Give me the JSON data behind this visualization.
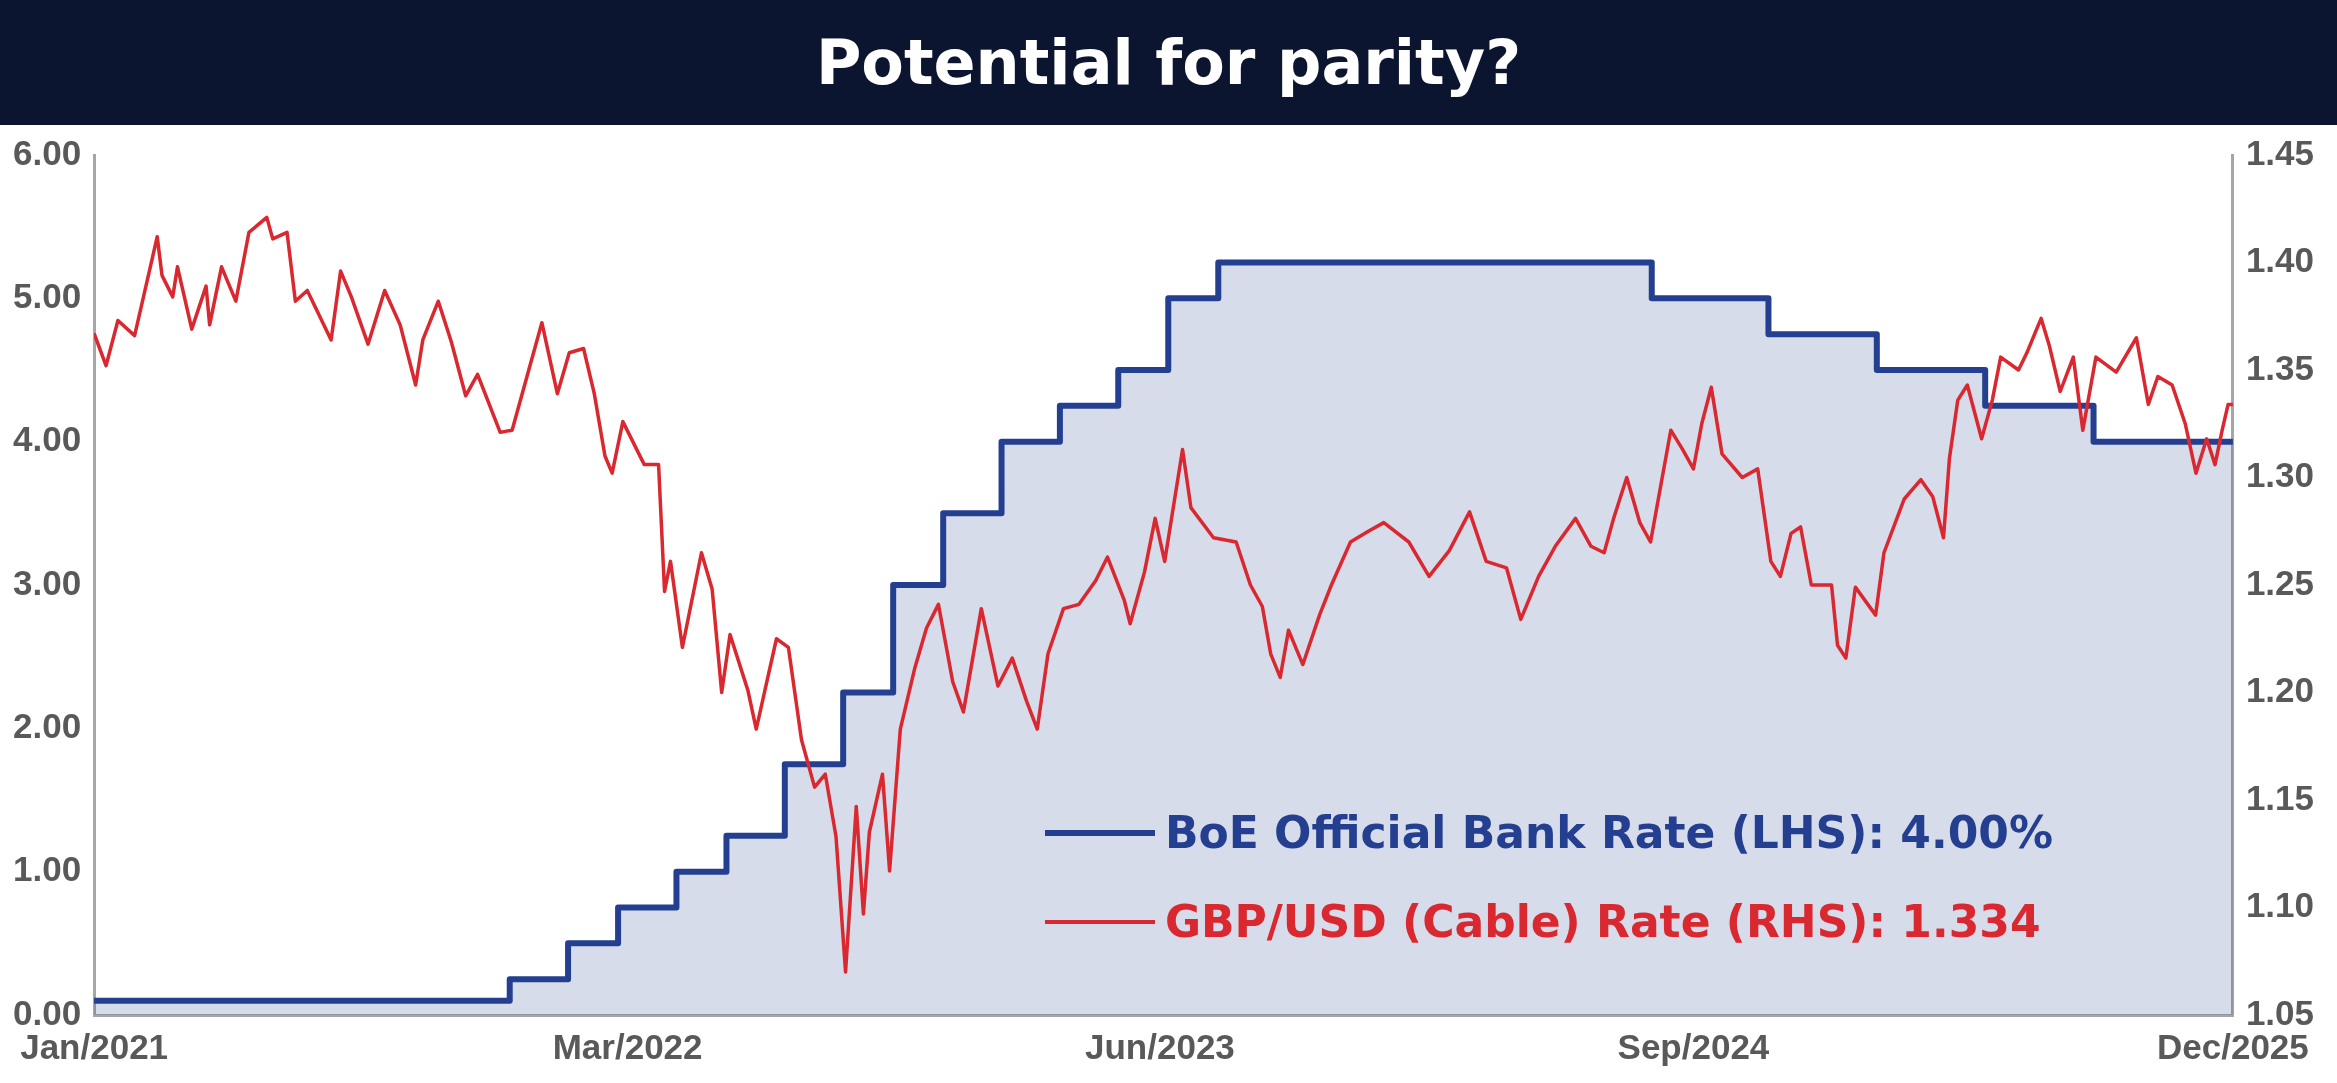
{
  "chart_data": {
    "type": "line",
    "title": "Potential for parity?",
    "xlim": [
      "2021-01-01",
      "2025-12-02"
    ],
    "xticks": [
      {
        "value": "2021-01-01",
        "label": "Jan/2021"
      },
      {
        "value": "2022-03-25",
        "label": "Mar/2022"
      },
      {
        "value": "2023-06-15",
        "label": "Jun/2023"
      },
      {
        "value": "2024-09-05",
        "label": "Sep/2024"
      },
      {
        "value": "2025-12-02",
        "label": "Dec/2025"
      }
    ],
    "ylim": [
      0,
      6
    ],
    "yticks": [
      {
        "value": 0,
        "label": "0.00"
      },
      {
        "value": 1,
        "label": "1.00"
      },
      {
        "value": 2,
        "label": "2.00"
      },
      {
        "value": 3,
        "label": "3.00"
      },
      {
        "value": 4,
        "label": "4.00"
      },
      {
        "value": 5,
        "label": "5.00"
      },
      {
        "value": 6,
        "label": "6.00"
      }
    ],
    "y2lim": [
      1.05,
      1.45
    ],
    "y2ticks": [
      {
        "value": 1.05,
        "label": "1.05"
      },
      {
        "value": 1.1,
        "label": "1.10"
      },
      {
        "value": 1.15,
        "label": "1.15"
      },
      {
        "value": 1.2,
        "label": "1.20"
      },
      {
        "value": 1.25,
        "label": "1.25"
      },
      {
        "value": 1.3,
        "label": "1.30"
      },
      {
        "value": 1.35,
        "label": "1.35"
      },
      {
        "value": 1.4,
        "label": "1.40"
      },
      {
        "value": 1.45,
        "label": "1.45"
      }
    ],
    "grid": false,
    "legend": "bottom right",
    "series": [
      {
        "name": "BoE Official Bank Rate (LHS): 4.00%",
        "type": "area",
        "color": "#243f8f",
        "x": [
          "2021-01-01",
          "2021-12-16",
          "2021-12-16",
          "2022-02-03",
          "2022-02-03",
          "2022-03-17",
          "2022-03-17",
          "2022-05-05",
          "2022-05-05",
          "2022-06-16",
          "2022-06-16",
          "2022-08-04",
          "2022-08-04",
          "2022-09-22",
          "2022-09-22",
          "2022-11-03",
          "2022-11-03",
          "2022-12-15",
          "2022-12-15",
          "2023-02-02",
          "2023-02-02",
          "2023-03-23",
          "2023-03-23",
          "2023-05-11",
          "2023-05-11",
          "2023-06-22",
          "2023-06-22",
          "2023-08-03",
          "2023-08-03",
          "2024-08-01",
          "2024-08-01",
          "2024-11-07",
          "2024-11-07",
          "2025-02-06",
          "2025-02-06",
          "2025-05-08",
          "2025-05-08",
          "2025-08-07",
          "2025-08-07",
          "2025-12-02"
        ],
        "values": [
          0.1,
          0.1,
          0.25,
          0.25,
          0.5,
          0.5,
          0.75,
          0.75,
          1.0,
          1.0,
          1.25,
          1.25,
          1.75,
          1.75,
          2.25,
          2.25,
          3.0,
          3.0,
          3.5,
          3.5,
          4.0,
          4.0,
          4.25,
          4.25,
          4.5,
          4.5,
          5.0,
          5.0,
          5.25,
          5.25,
          5.0,
          5.0,
          4.75,
          4.75,
          4.5,
          4.5,
          4.25,
          4.25,
          4.0,
          4.0
        ]
      },
      {
        "name": "GBP/USD (Cable) Rate (RHS): 1.334",
        "axis": "y2",
        "color": "#d9282f",
        "x": [
          "2021-01-01",
          "2021-01-11",
          "2021-01-21",
          "2021-02-04",
          "2021-02-23",
          "2021-02-27",
          "2021-03-08",
          "2021-03-12",
          "2021-03-24",
          "2021-04-05",
          "2021-04-08",
          "2021-04-18",
          "2021-04-30",
          "2021-05-11",
          "2021-05-26",
          "2021-05-31",
          "2021-06-12",
          "2021-06-19",
          "2021-06-29",
          "2021-07-19",
          "2021-07-27",
          "2021-08-05",
          "2021-08-19",
          "2021-09-02",
          "2021-09-15",
          "2021-09-28",
          "2021-10-04",
          "2021-10-17",
          "2021-10-28",
          "2021-11-09",
          "2021-11-19",
          "2021-12-08",
          "2021-12-18",
          "2022-01-01",
          "2022-01-12",
          "2022-01-25",
          "2022-02-04",
          "2022-02-16",
          "2022-02-25",
          "2022-03-06",
          "2022-03-12",
          "2022-03-21",
          "2022-04-08",
          "2022-04-20",
          "2022-04-25",
          "2022-04-30",
          "2022-05-10",
          "2022-05-26",
          "2022-06-04",
          "2022-06-12",
          "2022-06-19",
          "2022-07-04",
          "2022-07-11",
          "2022-07-28",
          "2022-08-07",
          "2022-08-18",
          "2022-08-29",
          "2022-09-07",
          "2022-09-16",
          "2022-09-24",
          "2022-10-03",
          "2022-10-09",
          "2022-10-14",
          "2022-10-25",
          "2022-10-31",
          "2022-11-09",
          "2022-11-21",
          "2022-12-01",
          "2022-12-11",
          "2022-12-23",
          "2023-01-01",
          "2023-01-16",
          "2023-01-30",
          "2023-02-11",
          "2023-02-23",
          "2023-03-04",
          "2023-03-13",
          "2023-03-26",
          "2023-04-08",
          "2023-04-22",
          "2023-05-02",
          "2023-05-16",
          "2023-05-21",
          "2023-06-02",
          "2023-06-11",
          "2023-06-19",
          "2023-07-04",
          "2023-07-11",
          "2023-07-30",
          "2023-08-18",
          "2023-08-30",
          "2023-09-09",
          "2023-09-16",
          "2023-09-24",
          "2023-10-01",
          "2023-10-13",
          "2023-10-27",
          "2023-11-06",
          "2023-11-22",
          "2023-12-07",
          "2023-12-20",
          "2024-01-10",
          "2024-01-27",
          "2024-02-13",
          "2024-03-01",
          "2024-03-15",
          "2024-04-01",
          "2024-04-13",
          "2024-04-28",
          "2024-05-12",
          "2024-05-29",
          "2024-06-11",
          "2024-06-22",
          "2024-06-30",
          "2024-07-11",
          "2024-07-22",
          "2024-07-31",
          "2024-08-17",
          "2024-08-27",
          "2024-09-05",
          "2024-09-12",
          "2024-09-20",
          "2024-09-29",
          "2024-10-16",
          "2024-10-29",
          "2024-11-09",
          "2024-11-17",
          "2024-11-26",
          "2024-12-04",
          "2024-12-13",
          "2024-12-30",
          "2025-01-04",
          "2025-01-11",
          "2025-01-19",
          "2025-02-05",
          "2025-02-12",
          "2025-03-01",
          "2025-03-15",
          "2025-03-25",
          "2025-04-03",
          "2025-04-08",
          "2025-04-15",
          "2025-04-23",
          "2025-05-05",
          "2025-05-14",
          "2025-05-21",
          "2025-06-05",
          "2025-06-12",
          "2025-06-24",
          "2025-07-01",
          "2025-07-10",
          "2025-07-21",
          "2025-07-29",
          "2025-08-09",
          "2025-08-26",
          "2025-09-12",
          "2025-09-22",
          "2025-09-30",
          "2025-10-12",
          "2025-10-23",
          "2025-11-01",
          "2025-11-10",
          "2025-11-17",
          "2025-11-23",
          "2025-11-28",
          "2025-12-02"
        ],
        "values": [
          1.367,
          1.352,
          1.373,
          1.366,
          1.412,
          1.394,
          1.384,
          1.398,
          1.369,
          1.389,
          1.371,
          1.398,
          1.382,
          1.414,
          1.421,
          1.411,
          1.414,
          1.382,
          1.387,
          1.364,
          1.396,
          1.384,
          1.362,
          1.387,
          1.371,
          1.343,
          1.364,
          1.382,
          1.363,
          1.338,
          1.348,
          1.321,
          1.322,
          1.35,
          1.372,
          1.339,
          1.358,
          1.36,
          1.339,
          1.31,
          1.302,
          1.326,
          1.306,
          1.306,
          1.247,
          1.261,
          1.221,
          1.265,
          1.248,
          1.2,
          1.227,
          1.201,
          1.183,
          1.225,
          1.221,
          1.178,
          1.156,
          1.162,
          1.133,
          1.07,
          1.147,
          1.097,
          1.135,
          1.162,
          1.117,
          1.183,
          1.211,
          1.23,
          1.241,
          1.205,
          1.191,
          1.239,
          1.203,
          1.216,
          1.196,
          1.183,
          1.218,
          1.239,
          1.241,
          1.252,
          1.263,
          1.243,
          1.232,
          1.256,
          1.281,
          1.261,
          1.313,
          1.286,
          1.272,
          1.27,
          1.25,
          1.24,
          1.218,
          1.207,
          1.229,
          1.213,
          1.236,
          1.25,
          1.27,
          1.275,
          1.279,
          1.27,
          1.254,
          1.266,
          1.284,
          1.261,
          1.258,
          1.234,
          1.254,
          1.268,
          1.281,
          1.268,
          1.265,
          1.281,
          1.3,
          1.279,
          1.27,
          1.322,
          1.313,
          1.304,
          1.325,
          1.342,
          1.311,
          1.3,
          1.304,
          1.261,
          1.254,
          1.274,
          1.277,
          1.25,
          1.25,
          1.222,
          1.216,
          1.249,
          1.236,
          1.265,
          1.29,
          1.299,
          1.291,
          1.272,
          1.309,
          1.336,
          1.343,
          1.318,
          1.336,
          1.356,
          1.35,
          1.358,
          1.374,
          1.361,
          1.34,
          1.356,
          1.322,
          1.356,
          1.349,
          1.365,
          1.334,
          1.347,
          1.343,
          1.325,
          1.302,
          1.318,
          1.306,
          1.322,
          1.334,
          1.334
        ]
      }
    ]
  }
}
